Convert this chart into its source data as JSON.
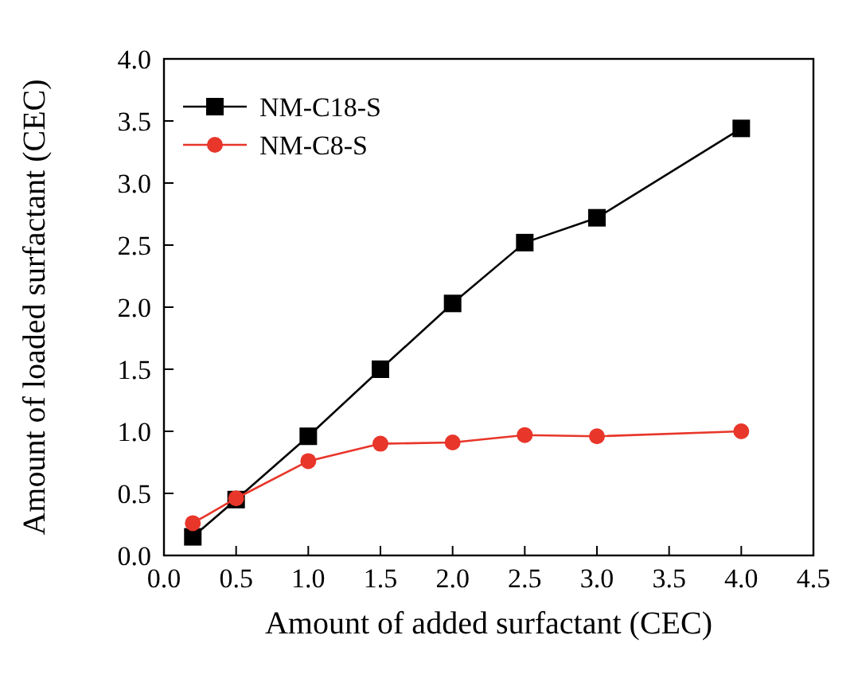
{
  "chart_data": {
    "type": "line",
    "xlabel": "Amount of added surfactant (CEC)",
    "ylabel": "Amount of loaded surfactant (CEC)",
    "x": [
      0.2,
      0.5,
      1.0,
      1.5,
      2.0,
      2.5,
      3.0,
      4.0
    ],
    "series": [
      {
        "name": "NM-C18-S",
        "color": "#000000",
        "marker": "square",
        "values": [
          0.15,
          0.45,
          0.96,
          1.5,
          2.03,
          2.52,
          2.72,
          3.44
        ]
      },
      {
        "name": "NM-C8-S",
        "color": "#e8362a",
        "marker": "circle",
        "values": [
          0.26,
          0.46,
          0.76,
          0.9,
          0.91,
          0.97,
          0.96,
          1.0
        ]
      }
    ],
    "xlim": [
      0,
      4.5
    ],
    "xticks": [
      {
        "value": 0,
        "label": "0.0"
      },
      0.5,
      {
        "value": 1,
        "label": "1.0"
      },
      1.5,
      {
        "value": 2,
        "label": "2.0"
      },
      2.5,
      {
        "value": 3,
        "label": "3.0"
      },
      3.5,
      {
        "value": 4,
        "label": "4.0"
      },
      4.5
    ],
    "ylim": [
      0,
      4
    ],
    "yticks": [
      {
        "value": 0,
        "label": "0.0"
      },
      0.5,
      {
        "value": 1,
        "label": "1.0"
      },
      1.5,
      {
        "value": 2,
        "label": "2.0"
      },
      2.5,
      {
        "value": 3,
        "label": "3.0"
      },
      3.5,
      {
        "value": 4,
        "label": "4.0"
      }
    ],
    "grid": false,
    "legend": "top left",
    "line_style": "solid"
  }
}
